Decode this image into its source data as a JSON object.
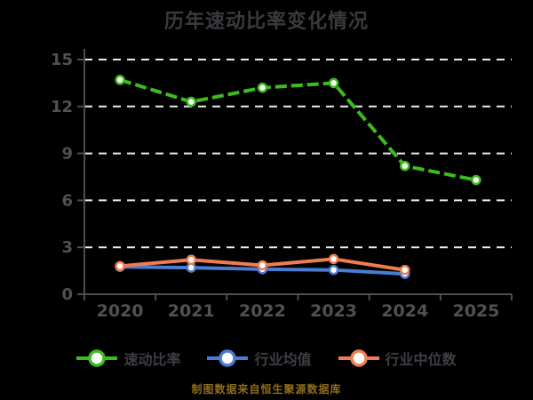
{
  "chart_data": {
    "type": "line",
    "title": "历年速动比率变化情况",
    "categories": [
      "2020",
      "2021",
      "2022",
      "2023",
      "2024",
      "2025"
    ],
    "series": [
      {
        "name": "速动比率",
        "color": "#3CBC1E",
        "line_style": "dashed",
        "values": [
          13.7,
          12.3,
          13.2,
          13.5,
          8.2,
          7.3
        ]
      },
      {
        "name": "行业均值",
        "color": "#4A7BD5",
        "line_style": "solid",
        "values": [
          1.75,
          1.7,
          1.6,
          1.55,
          1.3,
          null
        ]
      },
      {
        "name": "行业中位数",
        "color": "#F07D50",
        "line_style": "solid",
        "values": [
          1.8,
          2.2,
          1.85,
          2.25,
          1.55,
          null
        ]
      }
    ],
    "ylim": [
      0,
      15
    ],
    "yticks": [
      0,
      3,
      6,
      9,
      12,
      15
    ],
    "grid": "horizontal-dashed",
    "legend_position": "bottom"
  },
  "footer": {
    "text": "制图数据来自恒生聚源数据库"
  },
  "colors": {
    "background": "#000000",
    "title_text": "#3A3A3E",
    "legend_text": "#3E3E44",
    "axis_line": "#4D4D52",
    "axis_text": "#505055",
    "gridline": "#ECECEC",
    "marker_fill": "#FFFFFF",
    "footer_text": "#8E6D1B"
  }
}
